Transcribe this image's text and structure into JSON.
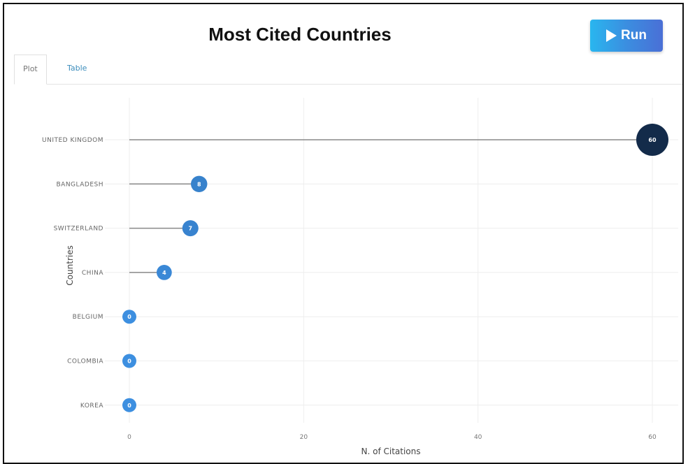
{
  "header": {
    "title": "Most Cited Countries",
    "run_label": "Run"
  },
  "tabs": [
    {
      "label": "Plot",
      "active": true
    },
    {
      "label": "Table",
      "active": false
    }
  ],
  "colors": {
    "point_low": "#3d8fe0",
    "point_high": "#132b4a",
    "stem": "#888888",
    "grid": "#eeeeee"
  },
  "chart_data": {
    "type": "lollipop",
    "title": "Most Cited Countries",
    "xlabel": "N. of Citations",
    "ylabel": "Countries",
    "xlim": [
      0,
      60
    ],
    "xticks": [
      0,
      20,
      40,
      60
    ],
    "grid": true,
    "categories": [
      "UNITED KINGDOM",
      "BANGLADESH",
      "SWITZERLAND",
      "CHINA",
      "BELGIUM",
      "COLOMBIA",
      "KOREA"
    ],
    "values": [
      60,
      8,
      7,
      4,
      0,
      0,
      0
    ]
  }
}
